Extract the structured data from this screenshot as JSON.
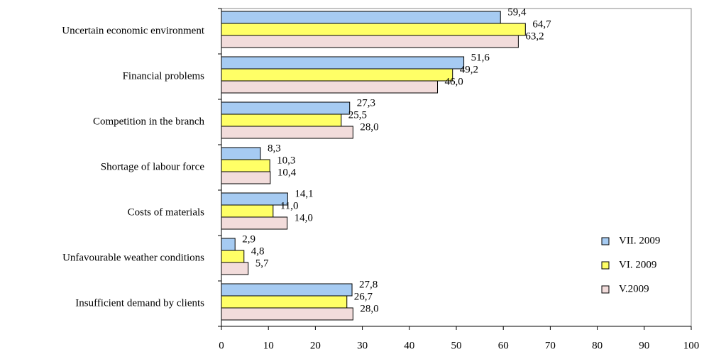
{
  "chart_data": {
    "type": "hbar",
    "categories": [
      "Uncertain economic environment",
      "Financial problems",
      "Competition in the branch",
      "Shortage of labour force",
      "Costs of materials",
      "Unfavourable weather conditions",
      "Insufficient demand by clients"
    ],
    "series": [
      {
        "name": "VII. 2009",
        "color": "#a6cbf2",
        "values": [
          59.4,
          51.6,
          27.3,
          8.3,
          14.1,
          2.9,
          27.8
        ],
        "value_labels": [
          "59,4",
          "51,6",
          "27,3",
          "8,3",
          "14,1",
          "2,9",
          "27,8"
        ]
      },
      {
        "name": "VI. 2009",
        "color": "#ffff66",
        "values": [
          64.7,
          49.2,
          25.5,
          10.3,
          11.0,
          4.8,
          26.7
        ],
        "value_labels": [
          "64,7",
          "49,2",
          "25,5",
          "10,3",
          "11,0",
          "4,8",
          "26,7"
        ]
      },
      {
        "name": "V.2009",
        "color": "#f2dcdb",
        "values": [
          63.2,
          46.0,
          28.0,
          10.4,
          14.0,
          5.7,
          28.0
        ],
        "value_labels": [
          "63,2",
          "46,0",
          "28,0",
          "10,4",
          "14,0",
          "5,7",
          "28,0"
        ]
      }
    ],
    "xlim": [
      0,
      100
    ],
    "xticks": [
      0,
      10,
      20,
      30,
      40,
      50,
      60,
      70,
      80,
      90,
      100
    ]
  }
}
